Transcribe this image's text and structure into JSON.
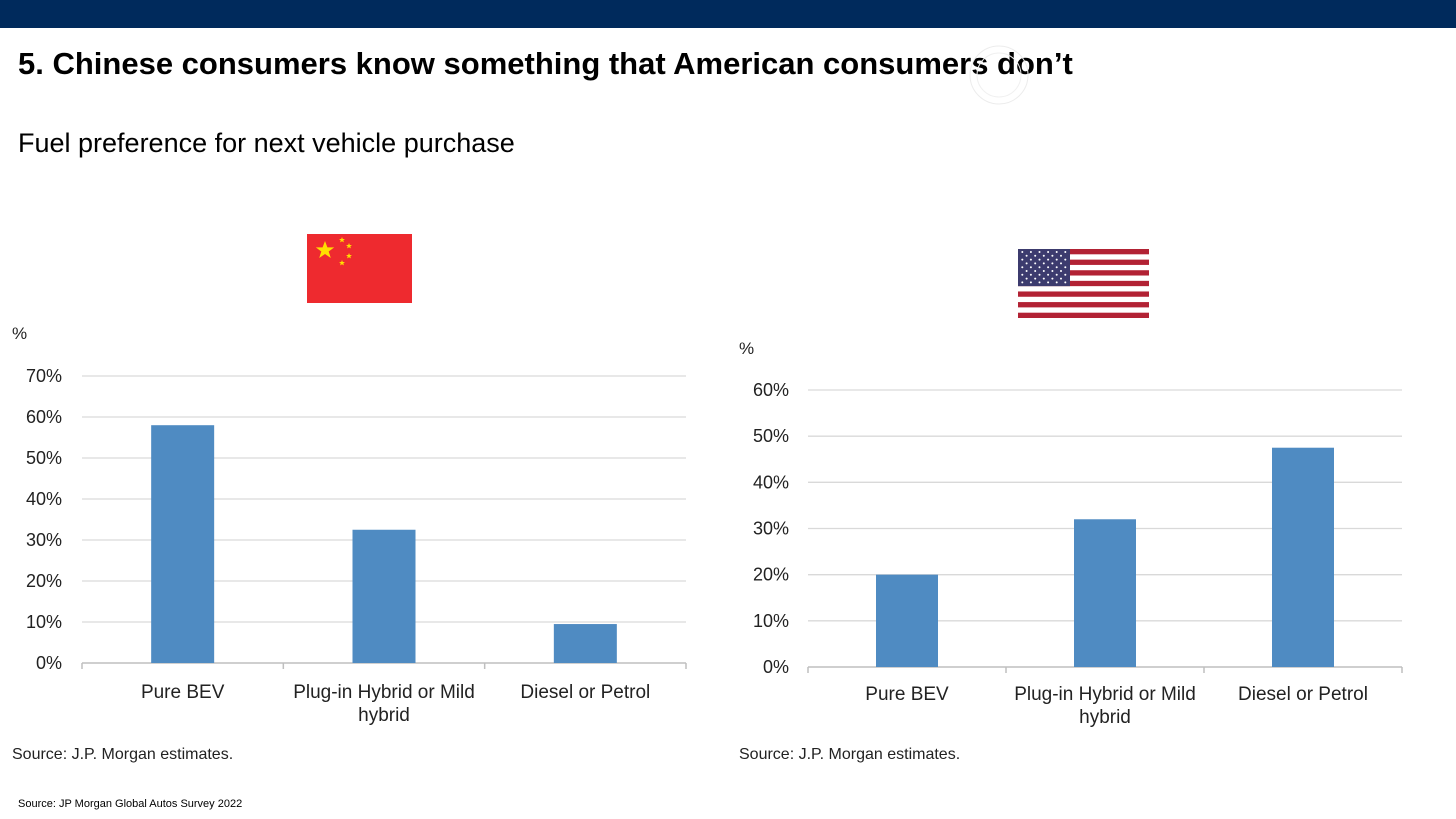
{
  "header": {
    "title": "5. Chinese consumers know something that American consumers don’t",
    "subtitle": "Fuel preference for next vehicle purchase"
  },
  "footer": {
    "source": "Source: JP Morgan Global Autos Survey 2022"
  },
  "colors": {
    "topbar": "#002a5c",
    "bar": "#4f8bc2",
    "grid": "#d9d9d9"
  },
  "flags": {
    "left": "china-flag",
    "right": "usa-flag"
  },
  "chart_data": [
    {
      "type": "bar",
      "unit_label": "%",
      "categories": [
        "Pure BEV",
        "Plug-in Hybrid or Mild hybrid",
        "Diesel or Petrol"
      ],
      "category_lines": [
        [
          "Pure BEV"
        ],
        [
          "Plug-in Hybrid or Mild",
          "hybrid"
        ],
        [
          "Diesel or Petrol"
        ]
      ],
      "values": [
        58,
        32.5,
        9.5
      ],
      "ylim": [
        0,
        70
      ],
      "yticks": [
        "0%",
        "10%",
        "20%",
        "30%",
        "40%",
        "50%",
        "60%",
        "70%"
      ],
      "grid": true,
      "source": "Source: J.P. Morgan estimates."
    },
    {
      "type": "bar",
      "unit_label": "%",
      "categories": [
        "Pure BEV",
        "Plug-in Hybrid or Mild hybrid",
        "Diesel or Petrol"
      ],
      "category_lines": [
        [
          "Pure BEV"
        ],
        [
          "Plug-in Hybrid or Mild",
          "hybrid"
        ],
        [
          "Diesel or Petrol"
        ]
      ],
      "values": [
        20,
        32,
        47.5
      ],
      "ylim": [
        0,
        60
      ],
      "yticks": [
        "0%",
        "10%",
        "20%",
        "30%",
        "40%",
        "50%",
        "60%"
      ],
      "grid": true,
      "source": "Source: J.P. Morgan estimates."
    }
  ]
}
